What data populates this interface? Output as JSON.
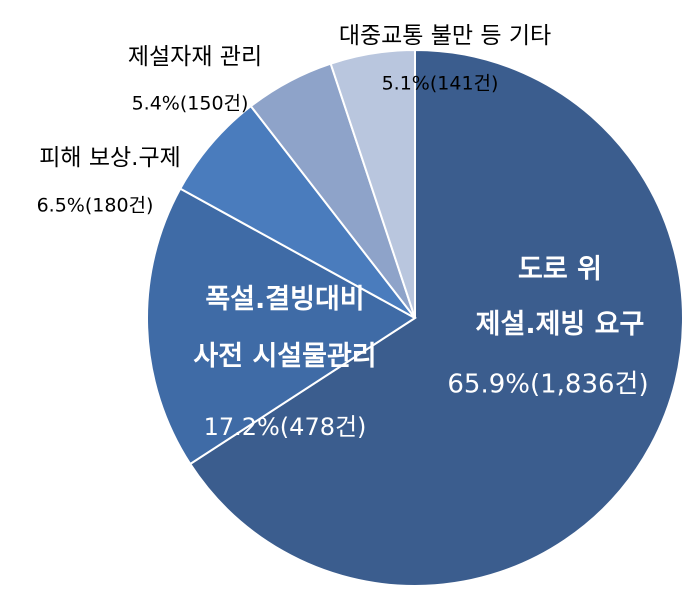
{
  "chart_data": {
    "type": "pie",
    "categories": [
      "도로 위\n제설.제빙 요구",
      "폭설.결빙대비\n사전 시설물관리",
      "피해 보상.구제",
      "제설자재 관리",
      "대중교통 불만 등 기타"
    ],
    "values": [
      65.9,
      17.2,
      6.5,
      5.4,
      5.1
    ],
    "value_labels": [
      "65.9%(1,836건)",
      "17.2%(478건)",
      "6.5%(180건)",
      "5.4%(150건)",
      "5.1%(141건)"
    ],
    "colors": [
      "#3b5d8e",
      "#3f6ba6",
      "#4a7cbd",
      "#8ea3c9",
      "#b9c6de"
    ]
  }
}
